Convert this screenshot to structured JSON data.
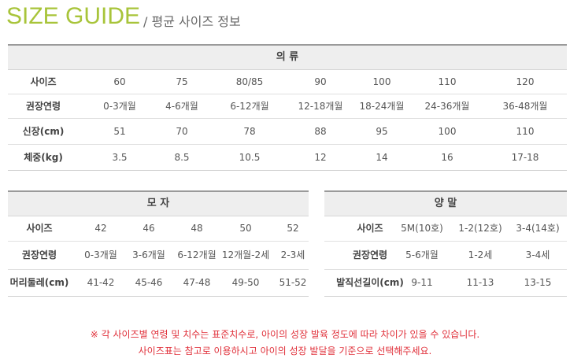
{
  "header": {
    "title": "SIZE GUIDE",
    "subtitle": "/ 평균 사이즈 정보"
  },
  "tables": [
    {
      "title": "의 류",
      "rows": [
        [
          "사이즈",
          "60",
          "75",
          "80/85",
          "90",
          "100",
          "110",
          "120"
        ],
        [
          "권장연령",
          "0-3개월",
          "4-6개월",
          "6-12개월",
          "12-18개월",
          "18-24개월",
          "24-36개월",
          "36-48개월"
        ],
        [
          "신장(cm)",
          "51",
          "70",
          "78",
          "88",
          "95",
          "100",
          "110"
        ],
        [
          "체중(kg)",
          "3.5",
          "8.5",
          "10.5",
          "12",
          "14",
          "16",
          "17-18"
        ]
      ]
    },
    {
      "title": "모 자",
      "rows": [
        [
          "사이즈",
          "42",
          "46",
          "48",
          "50",
          "52"
        ],
        [
          "권장연령",
          "0-3개월",
          "3-6개월",
          "6-12개월",
          "12개월-2세",
          "2-3세"
        ],
        [
          "머리둘레(cm)",
          "41-42",
          "45-46",
          "47-48",
          "49-50",
          "51-52"
        ]
      ]
    },
    {
      "title": "양 말",
      "rows": [
        [
          "사이즈",
          "5M(10호)",
          "1-2(12호)",
          "3-4(14호)"
        ],
        [
          "권장연령",
          "5-6개월",
          "1-2세",
          "3-4세"
        ],
        [
          "발직선길이(cm)",
          "9-11",
          "11-13",
          "13-15"
        ]
      ]
    }
  ],
  "notes": [
    "※ 각 사이즈별 연령 및 치수는 표준치수로, 아이의 성장 발육 정도에 따라 차이가 있을 수 있습니다.",
    "사이즈표는 참고로 이용하시고 아이의 성장 발달을 기준으로 선택해주세요."
  ]
}
